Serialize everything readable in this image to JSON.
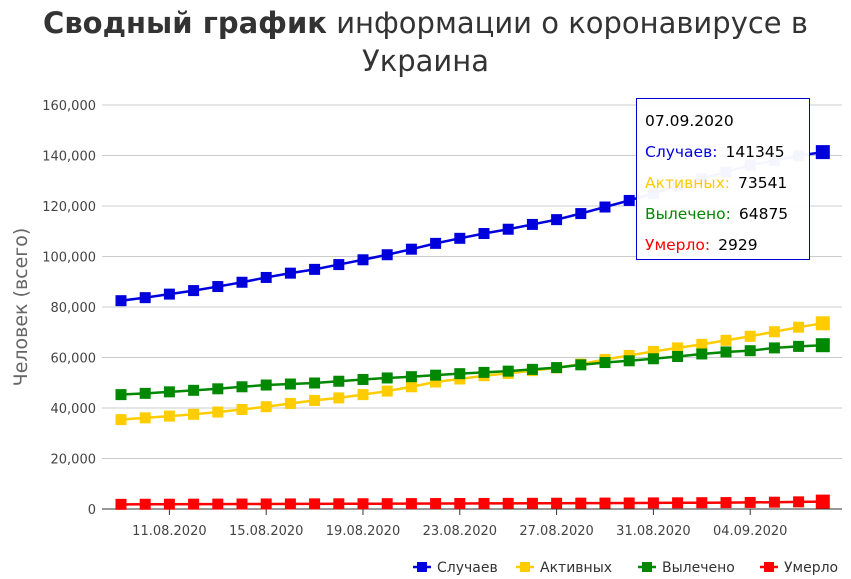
{
  "title": {
    "bold": "Сводный график",
    "rest": "информации о коронавирусе в Украина"
  },
  "chart_data": {
    "type": "line",
    "title": "Сводный график информации о коронавирусе в Украина",
    "ylabel": "Человек (всего)",
    "xlabel": "",
    "ylim": [
      0,
      160000
    ],
    "yticks": [
      "0",
      "20,000",
      "40,000",
      "60,000",
      "80,000",
      "100,000",
      "120,000",
      "140,000",
      "160,000"
    ],
    "ytick_values": [
      0,
      20000,
      40000,
      60000,
      80000,
      100000,
      120000,
      140000,
      160000
    ],
    "xtick_labels": [
      "11.08.2020",
      "15.08.2020",
      "19.08.2020",
      "23.08.2020",
      "27.08.2020",
      "31.08.2020",
      "04.09.2020"
    ],
    "x": [
      "09.08.2020",
      "10.08.2020",
      "11.08.2020",
      "12.08.2020",
      "13.08.2020",
      "14.08.2020",
      "15.08.2020",
      "16.08.2020",
      "17.08.2020",
      "18.08.2020",
      "19.08.2020",
      "20.08.2020",
      "21.08.2020",
      "22.08.2020",
      "23.08.2020",
      "24.08.2020",
      "25.08.2020",
      "26.08.2020",
      "27.08.2020",
      "28.08.2020",
      "29.08.2020",
      "30.08.2020",
      "31.08.2020",
      "01.09.2020",
      "02.09.2020",
      "03.09.2020",
      "04.09.2020",
      "05.09.2020",
      "06.09.2020",
      "07.09.2020"
    ],
    "series": [
      {
        "name": "Случаев",
        "color": "#0000dd",
        "values": [
          82500,
          83700,
          85100,
          86500,
          88100,
          89800,
          91700,
          93400,
          94900,
          96800,
          98700,
          100700,
          102900,
          105200,
          107200,
          109100,
          110800,
          112700,
          114600,
          117000,
          119600,
          122200,
          125000,
          128000,
          130800,
          133500,
          136200,
          138000,
          139900,
          141345
        ]
      },
      {
        "name": "Активных",
        "color": "#ffcc00",
        "values": [
          35400,
          36100,
          36800,
          37500,
          38400,
          39400,
          40500,
          41800,
          43000,
          44000,
          45300,
          46700,
          48400,
          50300,
          51500,
          52800,
          53700,
          54800,
          55900,
          57400,
          59200,
          60800,
          62400,
          63800,
          65200,
          66800,
          68400,
          70200,
          72000,
          73541
        ]
      },
      {
        "name": "Вылечено",
        "color": "#008800",
        "values": [
          45300,
          45800,
          46400,
          47000,
          47600,
          48400,
          49100,
          49500,
          49900,
          50600,
          51300,
          51900,
          52400,
          53000,
          53600,
          54100,
          54600,
          55300,
          56000,
          57100,
          58000,
          58700,
          59500,
          60400,
          61400,
          62200,
          62700,
          63800,
          64400,
          64875
        ]
      },
      {
        "name": "Умерло",
        "color": "#ff0000",
        "values": [
          1847,
          1870,
          1893,
          1917,
          1943,
          1966,
          1990,
          2014,
          2036,
          2058,
          2081,
          2106,
          2133,
          2157,
          2181,
          2207,
          2232,
          2258,
          2287,
          2319,
          2351,
          2384,
          2420,
          2458,
          2500,
          2541,
          2601,
          2698,
          2823,
          2929
        ]
      }
    ],
    "legend": "bottom-right",
    "grid": true
  },
  "tooltip": {
    "date": "07.09.2020",
    "rows": [
      {
        "label": "Случаев:",
        "value": "141345",
        "color": "#0000dd"
      },
      {
        "label": "Активных:",
        "value": "73541",
        "color": "#ffcc00"
      },
      {
        "label": "Вылечено:",
        "value": "64875",
        "color": "#008800"
      },
      {
        "label": "Умерло:",
        "value": "2929",
        "color": "#ff0000"
      }
    ]
  }
}
